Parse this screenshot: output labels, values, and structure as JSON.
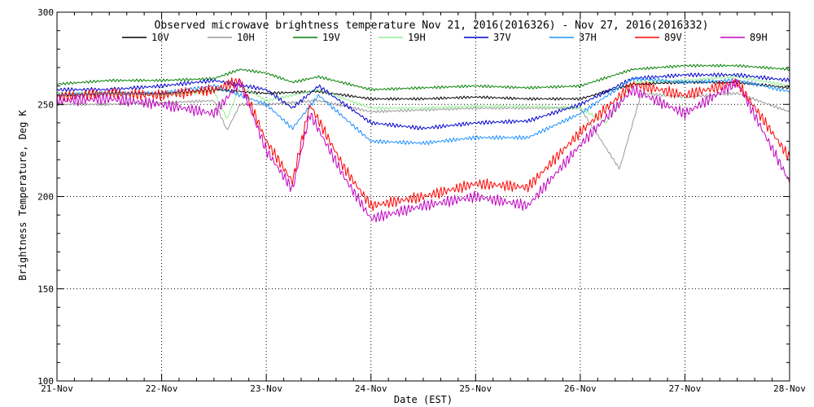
{
  "chart_data": {
    "type": "line",
    "title": "Observed microwave brightness temperature Nov 21, 2016(2016326) - Nov 27, 2016(2016332)",
    "xlabel": "Date (EST)",
    "ylabel": "Brightness Temperature, Deg K",
    "xlim": [
      "2016-11-21",
      "2016-11-28"
    ],
    "ylim": [
      100,
      300
    ],
    "xticks": [
      "21-Nov",
      "22-Nov",
      "23-Nov",
      "24-Nov",
      "25-Nov",
      "26-Nov",
      "27-Nov",
      "28-Nov"
    ],
    "yticks": [
      100,
      150,
      200,
      250,
      300
    ],
    "grid": true,
    "legend_position": "top",
    "series": [
      {
        "name": "10V",
        "color": "#000000",
        "values": [
          [
            "2016-11-21 00:00",
            255
          ],
          [
            "2016-11-21 12:00",
            256
          ],
          [
            "2016-11-22 00:00",
            256
          ],
          [
            "2016-11-22 12:00",
            258
          ],
          [
            "2016-11-23 00:00",
            256
          ],
          [
            "2016-11-23 12:00",
            257
          ],
          [
            "2016-11-24 00:00",
            253
          ],
          [
            "2016-11-24 12:00",
            253
          ],
          [
            "2016-11-25 00:00",
            254
          ],
          [
            "2016-11-25 12:00",
            253
          ],
          [
            "2016-11-26 00:00",
            253
          ],
          [
            "2016-11-26 12:00",
            261
          ],
          [
            "2016-11-27 00:00",
            262
          ],
          [
            "2016-11-27 12:00",
            262
          ],
          [
            "2016-11-28 00:00",
            259
          ]
        ]
      },
      {
        "name": "10H",
        "color": "#999999",
        "values": [
          [
            "2016-11-21 00:00",
            250
          ],
          [
            "2016-11-21 12:00",
            250
          ],
          [
            "2016-11-22 00:00",
            251
          ],
          [
            "2016-11-22 12:00",
            252
          ],
          [
            "2016-11-22 15:00",
            236
          ],
          [
            "2016-11-22 18:00",
            250
          ],
          [
            "2016-11-23 00:00",
            250
          ],
          [
            "2016-11-23 12:00",
            252
          ],
          [
            "2016-11-24 00:00",
            246
          ],
          [
            "2016-11-24 12:00",
            247
          ],
          [
            "2016-11-25 00:00",
            248
          ],
          [
            "2016-11-25 12:00",
            248
          ],
          [
            "2016-11-26 00:00",
            248
          ],
          [
            "2016-11-26 06:00",
            226
          ],
          [
            "2016-11-26 09:00",
            215
          ],
          [
            "2016-11-26 14:00",
            256
          ],
          [
            "2016-11-27 00:00",
            254
          ],
          [
            "2016-11-27 12:00",
            256
          ],
          [
            "2016-11-28 00:00",
            246
          ]
        ]
      },
      {
        "name": "19V",
        "color": "#008000",
        "values": [
          [
            "2016-11-21 00:00",
            261
          ],
          [
            "2016-11-21 12:00",
            263
          ],
          [
            "2016-11-22 00:00",
            263
          ],
          [
            "2016-11-22 12:00",
            264
          ],
          [
            "2016-11-22 18:00",
            269
          ],
          [
            "2016-11-23 00:00",
            267
          ],
          [
            "2016-11-23 06:00",
            262
          ],
          [
            "2016-11-23 12:00",
            265
          ],
          [
            "2016-11-24 00:00",
            258
          ],
          [
            "2016-11-24 12:00",
            259
          ],
          [
            "2016-11-25 00:00",
            260
          ],
          [
            "2016-11-25 12:00",
            259
          ],
          [
            "2016-11-26 00:00",
            260
          ],
          [
            "2016-11-26 12:00",
            269
          ],
          [
            "2016-11-27 00:00",
            271
          ],
          [
            "2016-11-27 12:00",
            271
          ],
          [
            "2016-11-28 00:00",
            269
          ]
        ]
      },
      {
        "name": "19H",
        "color": "#90ee90",
        "values": [
          [
            "2016-11-21 00:00",
            256
          ],
          [
            "2016-11-21 12:00",
            256
          ],
          [
            "2016-11-22 00:00",
            255
          ],
          [
            "2016-11-22 12:00",
            257
          ],
          [
            "2016-11-22 15:00",
            242
          ],
          [
            "2016-11-22 18:00",
            260
          ],
          [
            "2016-11-23 00:00",
            252
          ],
          [
            "2016-11-23 12:00",
            258
          ],
          [
            "2016-11-24 00:00",
            248
          ],
          [
            "2016-11-24 12:00",
            248
          ],
          [
            "2016-11-25 00:00",
            249
          ],
          [
            "2016-11-25 12:00",
            249
          ],
          [
            "2016-11-26 00:00",
            248
          ],
          [
            "2016-11-26 06:00",
            240
          ],
          [
            "2016-11-26 12:00",
            262
          ],
          [
            "2016-11-27 00:00",
            263
          ],
          [
            "2016-11-27 12:00",
            265
          ],
          [
            "2016-11-28 00:00",
            260
          ]
        ]
      },
      {
        "name": "37V",
        "color": "#0000cd",
        "values": [
          [
            "2016-11-21 00:00",
            258
          ],
          [
            "2016-11-21 12:00",
            258
          ],
          [
            "2016-11-22 00:00",
            260
          ],
          [
            "2016-11-22 12:00",
            263
          ],
          [
            "2016-11-23 00:00",
            258
          ],
          [
            "2016-11-23 06:00",
            248
          ],
          [
            "2016-11-23 12:00",
            260
          ],
          [
            "2016-11-24 00:00",
            240
          ],
          [
            "2016-11-24 12:00",
            237
          ],
          [
            "2016-11-25 00:00",
            240
          ],
          [
            "2016-11-25 12:00",
            241
          ],
          [
            "2016-11-26 00:00",
            250
          ],
          [
            "2016-11-26 12:00",
            264
          ],
          [
            "2016-11-27 00:00",
            266
          ],
          [
            "2016-11-27 12:00",
            266
          ],
          [
            "2016-11-28 00:00",
            263
          ]
        ]
      },
      {
        "name": "37H",
        "color": "#1e90ff",
        "values": [
          [
            "2016-11-21 00:00",
            255
          ],
          [
            "2016-11-21 12:00",
            256
          ],
          [
            "2016-11-22 00:00",
            256
          ],
          [
            "2016-11-22 12:00",
            260
          ],
          [
            "2016-11-23 00:00",
            250
          ],
          [
            "2016-11-23 06:00",
            237
          ],
          [
            "2016-11-23 12:00",
            255
          ],
          [
            "2016-11-24 00:00",
            230
          ],
          [
            "2016-11-24 12:00",
            229
          ],
          [
            "2016-11-25 00:00",
            232
          ],
          [
            "2016-11-25 12:00",
            232
          ],
          [
            "2016-11-26 00:00",
            245
          ],
          [
            "2016-11-26 12:00",
            264
          ],
          [
            "2016-11-27 00:00",
            262
          ],
          [
            "2016-11-27 12:00",
            263
          ],
          [
            "2016-11-28 00:00",
            257
          ]
        ]
      },
      {
        "name": "89V",
        "color": "#ff0000",
        "values": [
          [
            "2016-11-21 00:00",
            254
          ],
          [
            "2016-11-21 12:00",
            256
          ],
          [
            "2016-11-22 00:00",
            255
          ],
          [
            "2016-11-22 12:00",
            258
          ],
          [
            "2016-11-22 18:00",
            263
          ],
          [
            "2016-11-23 00:00",
            230
          ],
          [
            "2016-11-23 06:00",
            208
          ],
          [
            "2016-11-23 10:00",
            250
          ],
          [
            "2016-11-23 18:00",
            215
          ],
          [
            "2016-11-24 00:00",
            195
          ],
          [
            "2016-11-24 12:00",
            200
          ],
          [
            "2016-11-25 00:00",
            207
          ],
          [
            "2016-11-25 12:00",
            205
          ],
          [
            "2016-11-26 00:00",
            235
          ],
          [
            "2016-11-26 12:00",
            261
          ],
          [
            "2016-11-27 00:00",
            255
          ],
          [
            "2016-11-27 12:00",
            262
          ],
          [
            "2016-11-28 00:00",
            221
          ]
        ]
      },
      {
        "name": "89H",
        "color": "#c000c0",
        "values": [
          [
            "2016-11-21 00:00",
            252
          ],
          [
            "2016-11-21 12:00",
            253
          ],
          [
            "2016-11-22 00:00",
            250
          ],
          [
            "2016-11-22 12:00",
            245
          ],
          [
            "2016-11-22 18:00",
            262
          ],
          [
            "2016-11-23 00:00",
            225
          ],
          [
            "2016-11-23 06:00",
            204
          ],
          [
            "2016-11-23 10:00",
            245
          ],
          [
            "2016-11-23 18:00",
            210
          ],
          [
            "2016-11-24 00:00",
            188
          ],
          [
            "2016-11-24 12:00",
            195
          ],
          [
            "2016-11-25 00:00",
            200
          ],
          [
            "2016-11-25 12:00",
            195
          ],
          [
            "2016-11-26 00:00",
            228
          ],
          [
            "2016-11-26 12:00",
            258
          ],
          [
            "2016-11-27 00:00",
            245
          ],
          [
            "2016-11-27 12:00",
            262
          ],
          [
            "2016-11-28 00:00",
            208
          ]
        ]
      }
    ]
  }
}
